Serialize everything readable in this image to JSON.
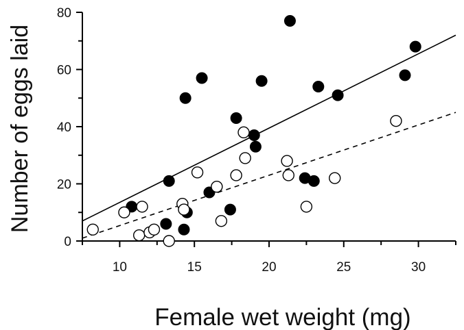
{
  "chart_data": {
    "type": "scatter",
    "xlabel": "Female wet weight (mg)",
    "ylabel": "Number of eggs laid",
    "xlim": [
      7.5,
      32.5
    ],
    "ylim": [
      0,
      80
    ],
    "xticks": [
      10,
      15,
      20,
      25,
      30
    ],
    "yticks": [
      0,
      20,
      40,
      60,
      80
    ],
    "grid": false,
    "series": [
      {
        "marker": "filled-circle",
        "color": "#000000",
        "fit_line": "solid",
        "fit": {
          "x": [
            7.5,
            32.5
          ],
          "y": [
            7.0,
            72.0
          ]
        },
        "x": [
          10.8,
          13.1,
          13.3,
          14.3,
          14.4,
          14.5,
          15.5,
          16.0,
          17.4,
          17.8,
          19.0,
          19.1,
          19.5,
          21.4,
          22.4,
          23.0,
          23.3,
          24.6,
          29.1,
          29.8
        ],
        "y": [
          12,
          6,
          21,
          4,
          50,
          10,
          57,
          17,
          11,
          43,
          37,
          33,
          56,
          77,
          22,
          21,
          54,
          51,
          58,
          68
        ]
      },
      {
        "marker": "open-circle",
        "color": "#000000",
        "fit_line": "dashed",
        "fit": {
          "x": [
            7.5,
            32.5
          ],
          "y": [
            1.0,
            45.0
          ]
        },
        "x": [
          8.2,
          10.3,
          11.3,
          11.5,
          12.0,
          12.3,
          13.3,
          14.2,
          14.3,
          15.2,
          16.5,
          16.8,
          17.8,
          18.3,
          18.4,
          21.2,
          21.3,
          22.5,
          24.4,
          28.5
        ],
        "y": [
          4,
          10,
          2,
          12,
          3,
          4,
          0,
          13,
          11,
          24,
          19,
          7,
          23,
          38,
          29,
          28,
          23,
          12,
          22,
          42
        ]
      }
    ]
  }
}
